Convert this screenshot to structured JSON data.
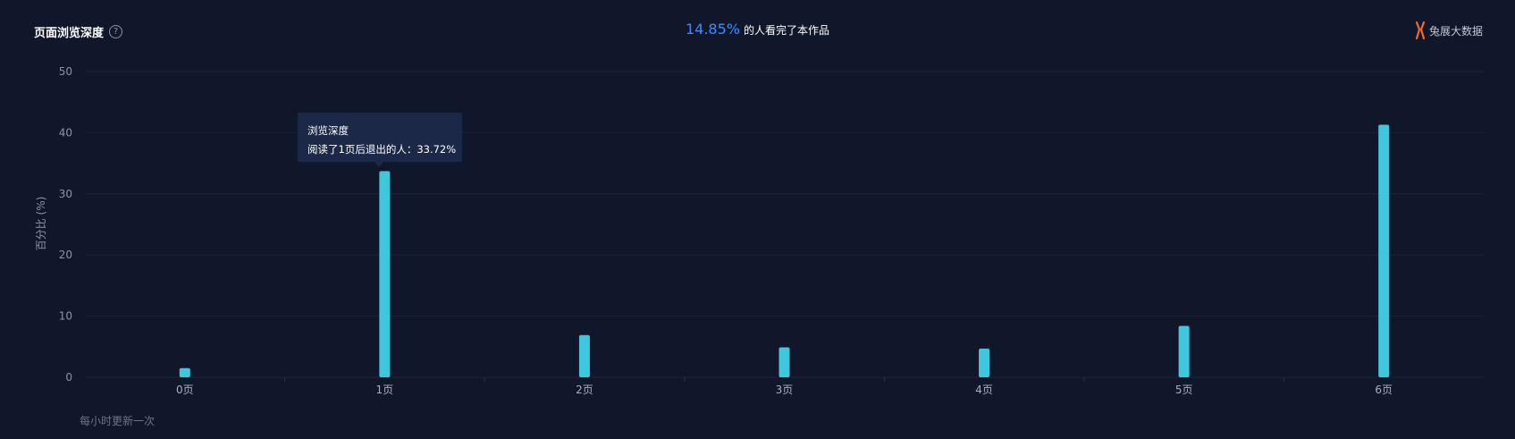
{
  "header": {
    "title": "页面浏览深度",
    "help_icon": "question-circle-icon"
  },
  "summary": {
    "completion_pct": "14.85%",
    "completion_text": "的人看完了本作品"
  },
  "brand": {
    "name": "兔展大数据",
    "logo_icon": "rabbit-logo-icon",
    "logo_color": "#f06a28"
  },
  "colors": {
    "bar": "#3fc7de",
    "accent": "#3d8bff",
    "background": "#11172a",
    "grid": "#1e2538"
  },
  "tooltip": {
    "title": "浏览深度",
    "line": "阅读了1页后退出的人：33.72%"
  },
  "footer": {
    "note": "每小时更新一次"
  },
  "chart_data": {
    "type": "bar",
    "title": "",
    "xlabel": "",
    "ylabel": "百分比 (%)",
    "categories": [
      "0页",
      "1页",
      "2页",
      "3页",
      "4页",
      "5页",
      "6页"
    ],
    "values": [
      1.5,
      33.72,
      6.9,
      4.9,
      4.7,
      8.4,
      41.3
    ],
    "ylim": [
      0,
      50
    ],
    "yticks": [
      0,
      10,
      20,
      30,
      40,
      50
    ],
    "grid": true,
    "legend": "none"
  }
}
